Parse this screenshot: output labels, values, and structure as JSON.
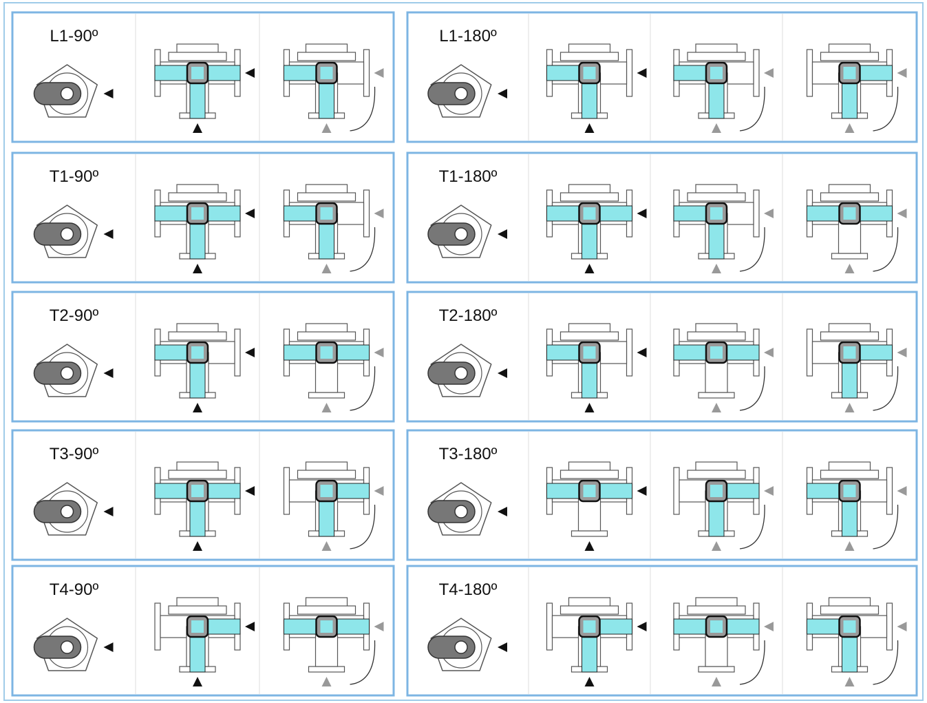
{
  "panels": [
    {
      "label": "L1-90º"
    },
    {
      "label": "L1-180º"
    },
    {
      "label": "T1-90º"
    },
    {
      "label": "T1-180º"
    },
    {
      "label": "T2-90º"
    },
    {
      "label": "T2-180º"
    },
    {
      "label": "T3-90º"
    },
    {
      "label": "T3-180º"
    },
    {
      "label": "T4-90º"
    },
    {
      "label": "T4-180º"
    }
  ]
}
